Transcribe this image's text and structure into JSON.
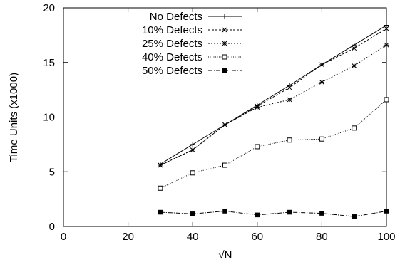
{
  "chart_data": {
    "type": "line",
    "title": "",
    "xlabel": "√N",
    "ylabel": "Time Units (x1000)",
    "xlim": [
      0,
      100
    ],
    "ylim": [
      0,
      20
    ],
    "xticks": [
      0,
      20,
      40,
      60,
      80,
      100
    ],
    "yticks": [
      0,
      5,
      10,
      15,
      20
    ],
    "grid": false,
    "legend_position": "top-right",
    "x": [
      30,
      40,
      50,
      60,
      70,
      80,
      90,
      100
    ],
    "series": [
      {
        "name": "No Defects",
        "marker": "plus",
        "dash": "solid",
        "values": [
          5.7,
          7.5,
          9.3,
          11.1,
          12.9,
          14.8,
          16.6,
          18.4
        ]
      },
      {
        "name": "10% Defects",
        "marker": "cross",
        "dash": "dashed",
        "values": [
          5.6,
          7.0,
          9.3,
          11.0,
          12.7,
          14.8,
          16.3,
          18.1
        ]
      },
      {
        "name": "25% Defects",
        "marker": "star",
        "dash": "dotted",
        "values": [
          5.6,
          7.0,
          9.3,
          10.9,
          11.6,
          13.2,
          14.7,
          16.6
        ]
      },
      {
        "name": "40% Defects",
        "marker": "open-square",
        "dash": "fine-dotted",
        "values": [
          3.5,
          4.9,
          5.6,
          7.3,
          7.9,
          8.0,
          9.0,
          11.6
        ]
      },
      {
        "name": "50% Defects",
        "marker": "filled-square",
        "dash": "dash-dot",
        "values": [
          1.3,
          1.15,
          1.4,
          1.05,
          1.3,
          1.2,
          0.9,
          1.4
        ]
      }
    ]
  }
}
